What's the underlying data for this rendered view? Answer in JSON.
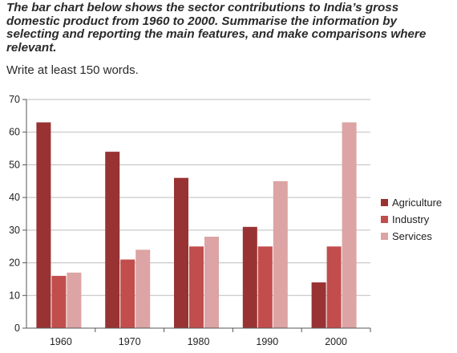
{
  "prompt": {
    "task_text": "The bar chart below shows the sector contributions to India’s gross domestic product from 1960 to 2000. Summarise the information by selecting and reporting the main features, and make comparisons where relevant.",
    "instruction": "Write at least 150 words."
  },
  "chart_data": {
    "type": "bar",
    "title": "",
    "xlabel": "",
    "ylabel": "",
    "categories": [
      "1960",
      "1970",
      "1980",
      "1990",
      "2000"
    ],
    "series": [
      {
        "name": "Agriculture",
        "values": [
          63,
          54,
          46,
          31,
          14
        ],
        "color": "#993333"
      },
      {
        "name": "Industry",
        "values": [
          16,
          21,
          25,
          25,
          25
        ],
        "color": "#c24d4d"
      },
      {
        "name": "Services",
        "values": [
          17,
          24,
          28,
          45,
          63
        ],
        "color": "#dca4a4"
      }
    ],
    "ylim": [
      0,
      70
    ],
    "yticks": [
      0,
      10,
      20,
      30,
      40,
      50,
      60,
      70
    ],
    "grid": true,
    "legend_position": "right"
  }
}
